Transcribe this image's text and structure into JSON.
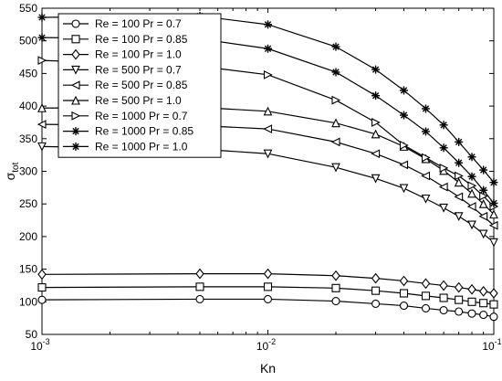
{
  "chart_data": {
    "type": "line",
    "title": "",
    "xlabel": "Kn",
    "ylabel": {
      "base": "σ",
      "sub": "tot"
    },
    "xscale": "log",
    "xlim": [
      0.001,
      0.1
    ],
    "ylim": [
      50,
      550
    ],
    "grid": false,
    "legend_position": "top-left",
    "x_tick_labels": [
      {
        "value": 0.001,
        "base": "10",
        "exp": "-3"
      },
      {
        "value": 0.01,
        "base": "10",
        "exp": "-2"
      },
      {
        "value": 0.1,
        "base": "10",
        "exp": "-1"
      }
    ],
    "y_ticks": [
      50,
      100,
      150,
      200,
      250,
      300,
      350,
      400,
      450,
      500,
      550
    ],
    "x": [
      0.001,
      0.005,
      0.01,
      0.02,
      0.03,
      0.04,
      0.05,
      0.06,
      0.07,
      0.08,
      0.09,
      0.1
    ],
    "series": [
      {
        "name": "Re = 100 Pr = 0.7",
        "marker": "circle",
        "values": [
          103,
          104,
          104,
          101,
          97,
          94,
          90,
          87,
          85,
          82,
          80,
          77
        ]
      },
      {
        "name": "Re = 100 Pr = 0.85",
        "marker": "square",
        "values": [
          122,
          123,
          123,
          121,
          117,
          113,
          109,
          106,
          103,
          100,
          98,
          96
        ]
      },
      {
        "name": "Re = 100 Pr = 1.0",
        "marker": "diamond",
        "values": [
          142,
          143,
          143,
          140,
          136,
          132,
          128,
          125,
          122,
          119,
          116,
          113
        ]
      },
      {
        "name": "Re = 500 Pr = 0.7",
        "marker": "triangle-down",
        "values": [
          338,
          334,
          327,
          306,
          289,
          274,
          258,
          244,
          231,
          218,
          204,
          191
        ]
      },
      {
        "name": "Re = 500 Pr = 0.85",
        "marker": "triangle-left",
        "values": [
          372,
          370,
          365,
          345,
          327,
          310,
          293,
          276,
          261,
          246,
          231,
          217
        ]
      },
      {
        "name": "Re = 500 Pr = 1.0",
        "marker": "triangle-up",
        "values": [
          397,
          398,
          392,
          374,
          357,
          338,
          319,
          301,
          283,
          266,
          250,
          234
        ]
      },
      {
        "name": "Re = 1000 Pr = 0.7",
        "marker": "triangle-right",
        "values": [
          470,
          461,
          448,
          409,
          375,
          340,
          321,
          305,
          293,
          278,
          262,
          246
        ]
      },
      {
        "name": "Re = 1000 Pr = 0.85",
        "marker": "star",
        "values": [
          505,
          503,
          488,
          452,
          416,
          386,
          361,
          336,
          313,
          292,
          271,
          251
        ]
      },
      {
        "name": "Re = 1000 Pr = 1.0",
        "marker": "star",
        "values": [
          536,
          538,
          525,
          491,
          456,
          424,
          396,
          371,
          345,
          322,
          302,
          283
        ]
      }
    ]
  }
}
